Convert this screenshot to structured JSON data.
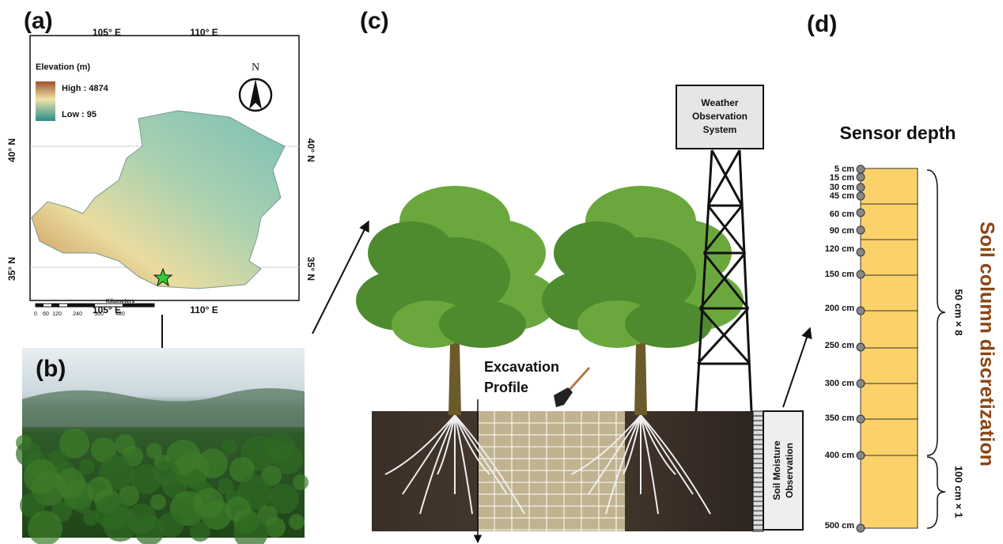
{
  "panels": {
    "a": "(a)",
    "b": "(b)",
    "c": "(c)",
    "d": "(d)"
  },
  "map": {
    "legend_title": "Elevation (m)",
    "high": "High : 4874",
    "low": "Low : 95",
    "north": "N",
    "scale_unit": "Kilometers",
    "scale_ticks": [
      "0",
      "60",
      "120",
      "240",
      "360",
      "480"
    ],
    "lon_labels": [
      "105° E",
      "110° E"
    ],
    "lat_labels": [
      "40° N",
      "35° N"
    ]
  },
  "station": {
    "weather": [
      "Weather",
      "Observation",
      "System"
    ],
    "excavation": [
      "Excavation",
      "Profile"
    ],
    "soil_moisture": [
      "Soil Moisture",
      "Observation"
    ]
  },
  "sensor": {
    "title": "Sensor depth",
    "depths": [
      "5 cm",
      "15 cm",
      "30 cm",
      "45 cm",
      "60 cm",
      "90 cm",
      "120 cm",
      "150 cm",
      "200 cm",
      "250 cm",
      "300 cm",
      "350 cm",
      "400 cm",
      "500 cm"
    ],
    "layers_upper": "50 cm × 8",
    "layers_lower": "100 cm × 1",
    "side_label": "Soil column discretization"
  }
}
